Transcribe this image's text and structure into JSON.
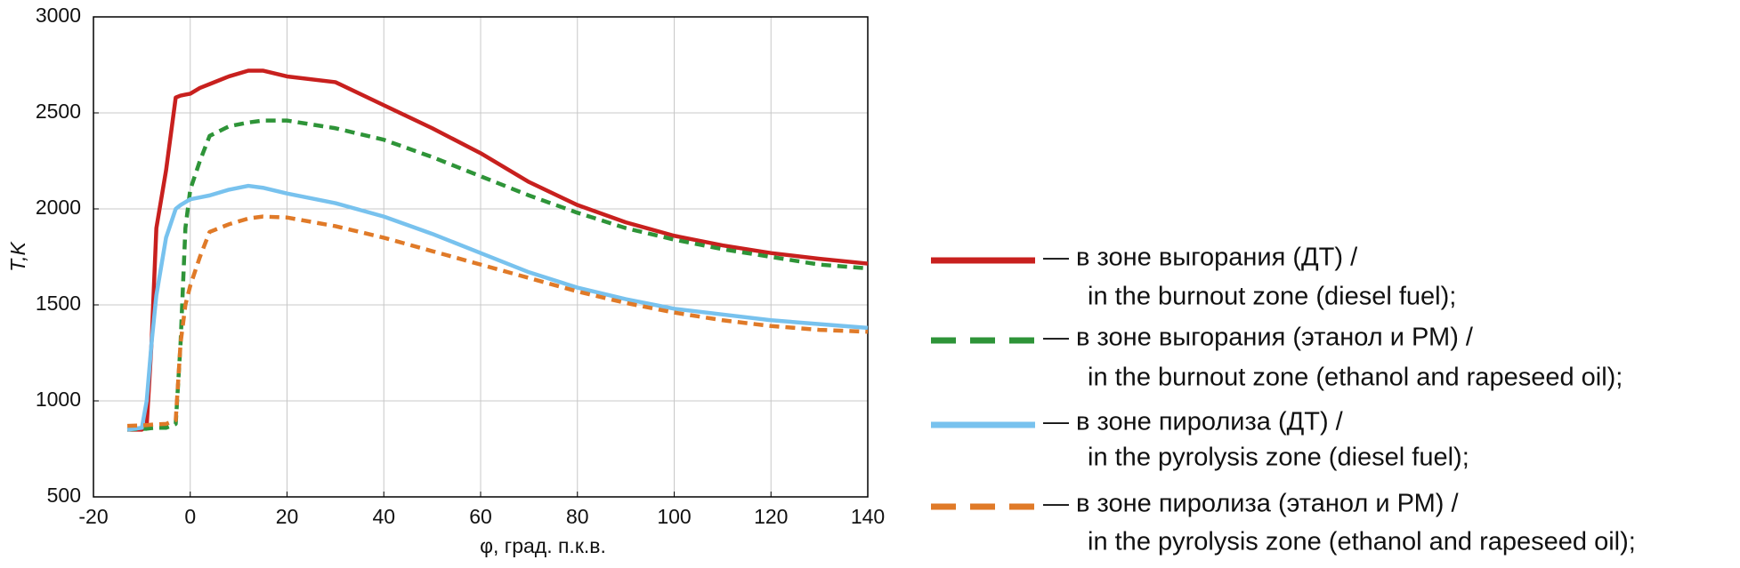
{
  "chart_data": {
    "type": "line",
    "xlabel": "φ, град. п.к.в.",
    "ylabel": "T,K",
    "x": [
      -13,
      -10,
      -9,
      -8,
      -7,
      -5,
      -3,
      -2,
      -1,
      0,
      2,
      4,
      8,
      12,
      15,
      20,
      30,
      40,
      50,
      60,
      70,
      80,
      90,
      100,
      110,
      120,
      130,
      140
    ],
    "series": [
      {
        "name": [
          "— в зоне выгорания (ДТ) /",
          "in the burnout zone (diesel fuel);"
        ],
        "color": "#c8201e",
        "dashed": false,
        "values": [
          850,
          850,
          870,
          1300,
          1900,
          2200,
          2580,
          2590,
          2595,
          2600,
          2630,
          2650,
          2690,
          2720,
          2720,
          2690,
          2660,
          2540,
          2420,
          2290,
          2140,
          2020,
          1930,
          1860,
          1810,
          1770,
          1740,
          1715
        ]
      },
      {
        "name": [
          "— в зоне выгорания (этанол и РМ) /",
          "in the burnout zone (ethanol and rapeseed oil);"
        ],
        "color": "#2e9438",
        "dashed": true,
        "values": [
          850,
          855,
          855,
          858,
          860,
          860,
          880,
          1300,
          1900,
          2100,
          2250,
          2380,
          2430,
          2450,
          2460,
          2460,
          2420,
          2360,
          2270,
          2170,
          2070,
          1980,
          1900,
          1840,
          1790,
          1750,
          1710,
          1690
        ]
      },
      {
        "name": [
          "— в зоне пиролиза (ДТ) /",
          "in the pyrolysis zone (diesel fuel);"
        ],
        "color": "#78c2ee",
        "dashed": false,
        "values": [
          850,
          860,
          1000,
          1300,
          1550,
          1850,
          2000,
          2020,
          2035,
          2050,
          2060,
          2070,
          2100,
          2120,
          2110,
          2080,
          2030,
          1960,
          1870,
          1770,
          1670,
          1590,
          1530,
          1480,
          1450,
          1420,
          1400,
          1380
        ]
      },
      {
        "name": [
          "— в зоне пиролиза (этанол и РМ) /",
          "in the pyrolysis zone (ethanol and rapeseed oil);"
        ],
        "color": "#e07a28",
        "dashed": true,
        "values": [
          870,
          872,
          874,
          876,
          878,
          880,
          900,
          1300,
          1500,
          1600,
          1750,
          1880,
          1920,
          1950,
          1960,
          1955,
          1910,
          1850,
          1780,
          1710,
          1640,
          1570,
          1510,
          1460,
          1420,
          1390,
          1370,
          1360
        ]
      }
    ],
    "xlim": [
      -20,
      140
    ],
    "xticks": [
      -20,
      0,
      20,
      40,
      60,
      80,
      100,
      120,
      140
    ],
    "ylim": [
      500,
      3000
    ],
    "yticks": [
      500,
      1000,
      1500,
      2000,
      2500,
      3000
    ],
    "grid": true,
    "legend": "right"
  }
}
